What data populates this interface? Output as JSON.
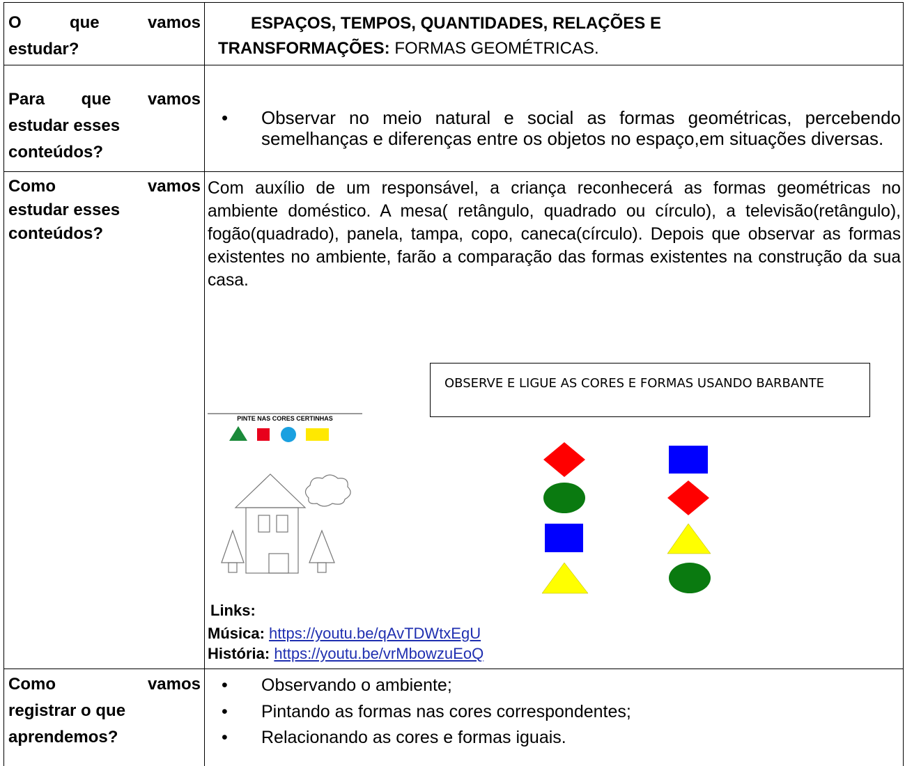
{
  "rows": [
    {
      "question_lines": [
        "O que vamos",
        "estudar?"
      ],
      "answer_bold": "ESPAÇOS, TEMPOS, QUANTIDADES, RELAÇÕES E TRANSFORMAÇÕES:",
      "answer": "FORMAS GEOMÉTRICAS."
    },
    {
      "question_lines": [
        "Para que vamos",
        "estudar esses",
        "conteúdos?"
      ],
      "bullets": [
        "Observar no meio natural e social as formas geométricas, percebendo semelhanças e diferenças entre os objetos no espaço,em situações diversas."
      ]
    },
    {
      "question_lines": [
        "Como vamos",
        "estudar esses",
        "conteúdos?"
      ],
      "paragraph": "Com auxílio de um responsável, a criança reconhecerá as formas geométricas no ambiente doméstico. A mesa( retângulo, quadrado ou círculo), a televisão(retângulo), fogão(quadrado), panela, tampa, copo, caneca(círculo). Depois que observar as formas existentes no ambiente, farão a comparação das formas existentes na construção da sua casa.",
      "worksheet_title": "PINTE NAS CORES CERTINHAS",
      "instruction": "OBSERVE E LIGUE AS CORES E FORMAS USANDO BARBANTE",
      "links_heading": "Links:",
      "links": [
        {
          "label": "Música:",
          "url": "https://youtu.be/qAvTDWtxEgU"
        },
        {
          "label": "História:",
          "url": "https://youtu.be/vrMbowzuEoQ"
        }
      ]
    },
    {
      "question_lines": [
        "Como vamos",
        "registrar o que",
        "aprendemos?"
      ],
      "bullets": [
        "Observando o ambiente;",
        "Pintando as formas nas cores correspondentes;",
        "Relacionando as cores e formas iguais."
      ]
    }
  ]
}
